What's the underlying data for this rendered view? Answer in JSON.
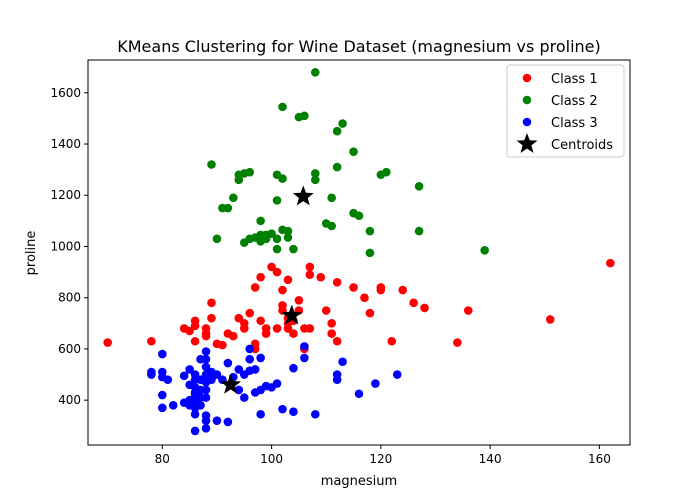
{
  "chart_data": {
    "type": "scatter",
    "title": "KMeans Clustering for Wine Dataset (magnesium vs proline)",
    "xlabel": "magnesium",
    "ylabel": "proline",
    "xlim": [
      66.4,
      165.6
    ],
    "ylim": [
      225,
      1728
    ],
    "xticks": [
      80,
      100,
      120,
      140,
      160
    ],
    "yticks": [
      400,
      600,
      800,
      1000,
      1200,
      1400,
      1600
    ],
    "grid": false,
    "legend": "top-right",
    "series": [
      {
        "name": "Class 1",
        "color": "#ff0000",
        "marker": "circle",
        "points": [
          [
            70,
            625
          ],
          [
            78,
            630
          ],
          [
            84,
            680
          ],
          [
            85,
            670
          ],
          [
            86,
            710
          ],
          [
            86,
            690
          ],
          [
            86,
            630
          ],
          [
            88,
            680
          ],
          [
            88,
            660
          ],
          [
            88,
            650
          ],
          [
            89,
            780
          ],
          [
            89,
            720
          ],
          [
            90,
            620
          ],
          [
            91,
            615
          ],
          [
            92,
            660
          ],
          [
            93,
            650
          ],
          [
            94,
            720
          ],
          [
            95,
            680
          ],
          [
            95,
            700
          ],
          [
            96,
            740
          ],
          [
            97,
            620
          ],
          [
            97,
            600
          ],
          [
            98,
            710
          ],
          [
            99,
            680
          ],
          [
            99,
            660
          ],
          [
            97,
            840
          ],
          [
            98,
            880
          ],
          [
            100,
            920
          ],
          [
            101,
            900
          ],
          [
            101,
            680
          ],
          [
            102,
            770
          ],
          [
            102,
            750
          ],
          [
            102,
            830
          ],
          [
            103,
            870
          ],
          [
            103,
            720
          ],
          [
            103,
            700
          ],
          [
            103,
            680
          ],
          [
            104,
            710
          ],
          [
            104,
            660
          ],
          [
            105,
            790
          ],
          [
            105,
            750
          ],
          [
            106,
            600
          ],
          [
            106,
            680
          ],
          [
            107,
            920
          ],
          [
            107,
            890
          ],
          [
            107,
            680
          ],
          [
            109,
            880
          ],
          [
            110,
            750
          ],
          [
            111,
            700
          ],
          [
            111,
            660
          ],
          [
            112,
            860
          ],
          [
            112,
            630
          ],
          [
            115,
            840
          ],
          [
            117,
            800
          ],
          [
            118,
            740
          ],
          [
            120,
            840
          ],
          [
            120,
            830
          ],
          [
            122,
            630
          ],
          [
            124,
            830
          ],
          [
            126,
            780
          ],
          [
            128,
            760
          ],
          [
            134,
            625
          ],
          [
            136,
            750
          ],
          [
            151,
            715
          ],
          [
            162,
            935
          ]
        ]
      },
      {
        "name": "Class 2",
        "color": "#008000",
        "marker": "circle",
        "points": [
          [
            89,
            1320
          ],
          [
            90,
            1030
          ],
          [
            91,
            1150
          ],
          [
            92,
            1150
          ],
          [
            93,
            1190
          ],
          [
            94,
            1260
          ],
          [
            94,
            1280
          ],
          [
            95,
            1285
          ],
          [
            95,
            1015
          ],
          [
            96,
            1290
          ],
          [
            96,
            1030
          ],
          [
            97,
            1035
          ],
          [
            98,
            1045
          ],
          [
            98,
            1020
          ],
          [
            98,
            1100
          ],
          [
            99,
            1045
          ],
          [
            99,
            1030
          ],
          [
            100,
            1050
          ],
          [
            101,
            1280
          ],
          [
            101,
            1180
          ],
          [
            101,
            990
          ],
          [
            101,
            1030
          ],
          [
            102,
            1265
          ],
          [
            102,
            1545
          ],
          [
            102,
            1065
          ],
          [
            103,
            1060
          ],
          [
            103,
            1035
          ],
          [
            104,
            990
          ],
          [
            105,
            1505
          ],
          [
            106,
            1510
          ],
          [
            106,
            1195
          ],
          [
            108,
            1680
          ],
          [
            108,
            1285
          ],
          [
            108,
            1260
          ],
          [
            110,
            1090
          ],
          [
            111,
            1080
          ],
          [
            111,
            1190
          ],
          [
            112,
            1450
          ],
          [
            112,
            1310
          ],
          [
            113,
            1480
          ],
          [
            115,
            1370
          ],
          [
            115,
            1130
          ],
          [
            116,
            1120
          ],
          [
            118,
            1060
          ],
          [
            118,
            975
          ],
          [
            120,
            1280
          ],
          [
            121,
            1290
          ],
          [
            127,
            1060
          ],
          [
            127,
            1235
          ],
          [
            139,
            985
          ]
        ]
      },
      {
        "name": "Class 3",
        "color": "#0000ff",
        "marker": "circle",
        "points": [
          [
            78,
            500
          ],
          [
            78,
            510
          ],
          [
            80,
            580
          ],
          [
            80,
            510
          ],
          [
            80,
            490
          ],
          [
            80,
            420
          ],
          [
            80,
            370
          ],
          [
            81,
            480
          ],
          [
            82,
            380
          ],
          [
            84,
            495
          ],
          [
            84,
            390
          ],
          [
            85,
            520
          ],
          [
            85,
            460
          ],
          [
            85,
            400
          ],
          [
            85,
            380
          ],
          [
            86,
            500
          ],
          [
            86,
            480
          ],
          [
            86,
            450
          ],
          [
            86,
            430
          ],
          [
            86,
            420
          ],
          [
            86,
            400
          ],
          [
            86,
            370
          ],
          [
            86,
            345
          ],
          [
            86,
            280
          ],
          [
            87,
            560
          ],
          [
            87,
            480
          ],
          [
            87,
            440
          ],
          [
            87,
            410
          ],
          [
            87,
            380
          ],
          [
            88,
            590
          ],
          [
            88,
            560
          ],
          [
            88,
            530
          ],
          [
            88,
            500
          ],
          [
            88,
            470
          ],
          [
            88,
            440
          ],
          [
            88,
            410
          ],
          [
            88,
            340
          ],
          [
            88,
            320
          ],
          [
            88,
            290
          ],
          [
            89,
            510
          ],
          [
            89,
            480
          ],
          [
            90,
            500
          ],
          [
            90,
            320
          ],
          [
            91,
            480
          ],
          [
            92,
            545
          ],
          [
            92,
            315
          ],
          [
            93,
            490
          ],
          [
            94,
            440
          ],
          [
            94,
            520
          ],
          [
            95,
            500
          ],
          [
            95,
            410
          ],
          [
            96,
            600
          ],
          [
            96,
            560
          ],
          [
            96,
            515
          ],
          [
            97,
            520
          ],
          [
            97,
            430
          ],
          [
            98,
            565
          ],
          [
            98,
            440
          ],
          [
            98,
            345
          ],
          [
            99,
            455
          ],
          [
            100,
            450
          ],
          [
            101,
            465
          ],
          [
            102,
            365
          ],
          [
            104,
            525
          ],
          [
            104,
            355
          ],
          [
            106,
            610
          ],
          [
            106,
            565
          ],
          [
            108,
            345
          ],
          [
            112,
            480
          ],
          [
            112,
            500
          ],
          [
            113,
            550
          ],
          [
            116,
            425
          ],
          [
            119,
            465
          ],
          [
            123,
            500
          ]
        ]
      }
    ],
    "centroids": {
      "name": "Centroids",
      "color": "#000000",
      "marker": "star",
      "points": [
        [
          92.5,
          460
        ],
        [
          103.7,
          730
        ],
        [
          105.8,
          1195
        ]
      ]
    }
  }
}
